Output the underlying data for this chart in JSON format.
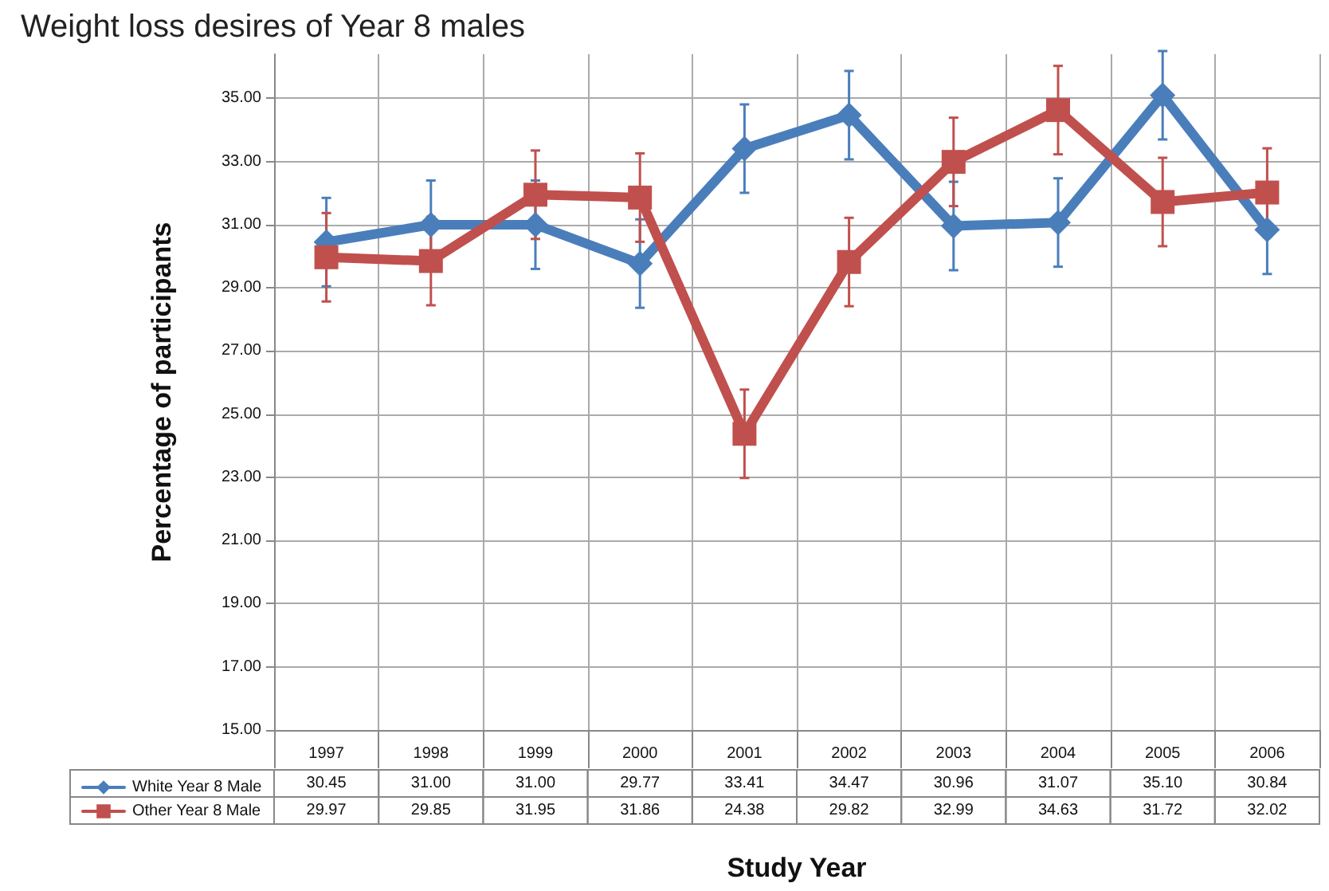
{
  "chart_data": {
    "type": "line",
    "title": "Weight loss desires of Year 8 males",
    "xlabel": "Study Year",
    "ylabel": "Percentage of participants",
    "categories": [
      "1997",
      "1998",
      "1999",
      "2000",
      "2001",
      "2002",
      "2003",
      "2004",
      "2005",
      "2006"
    ],
    "series": [
      {
        "name": "White Year 8 Male",
        "color": "#4a7ebb",
        "marker": "diamond",
        "values": [
          30.45,
          31.0,
          31.0,
          29.77,
          33.41,
          34.47,
          30.96,
          31.07,
          35.1,
          30.84
        ],
        "value_labels": [
          "30.45",
          "31.00",
          "31.00",
          "29.77",
          "33.41",
          "34.47",
          "30.96",
          "31.07",
          "35.10",
          "30.84"
        ],
        "errors": [
          1.4,
          1.4,
          1.4,
          1.4,
          1.4,
          1.4,
          1.4,
          1.4,
          1.4,
          1.4
        ]
      },
      {
        "name": "Other Year 8 Male",
        "color": "#c0504d",
        "marker": "square",
        "values": [
          29.97,
          29.85,
          31.95,
          31.86,
          24.38,
          29.82,
          32.99,
          34.63,
          31.72,
          32.02
        ],
        "value_labels": [
          "29.97",
          "29.85",
          "31.95",
          "31.86",
          "24.38",
          "29.82",
          "32.99",
          "34.63",
          "31.72",
          "32.02"
        ],
        "errors": [
          1.4,
          1.4,
          1.4,
          1.4,
          1.4,
          1.4,
          1.4,
          1.4,
          1.4,
          1.4
        ]
      }
    ],
    "ylim": [
      15,
      36.4
    ],
    "yticks": [
      {
        "value": 15,
        "label": "15.00"
      },
      {
        "value": 17,
        "label": "17.00"
      },
      {
        "value": 19,
        "label": "19.00"
      },
      {
        "value": 21,
        "label": "21.00"
      },
      {
        "value": 23,
        "label": "23.00"
      },
      {
        "value": 25,
        "label": "25.00"
      },
      {
        "value": 27,
        "label": "27.00"
      },
      {
        "value": 29,
        "label": "29.00"
      },
      {
        "value": 31,
        "label": "31.00"
      },
      {
        "value": 33,
        "label": "33.00"
      },
      {
        "value": 35,
        "label": "35.00"
      }
    ],
    "grid": true,
    "legend": "bottom left",
    "line_style": "solid"
  }
}
